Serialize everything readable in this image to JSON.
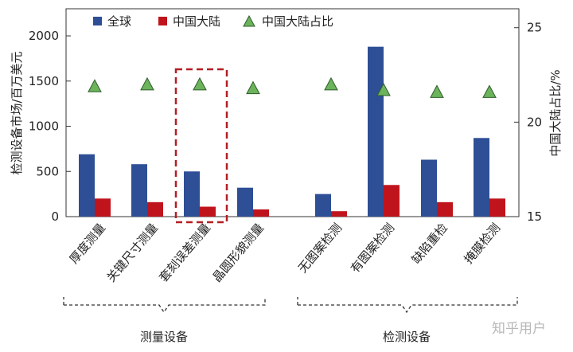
{
  "chart_data": {
    "type": "bar",
    "categories": [
      "厚度测量",
      "关键尺寸测量",
      "套刻误差测量",
      "晶圆形貌测量",
      "无图案检测",
      "有图案检测",
      "缺陷重检",
      "掩膜检测"
    ],
    "series": [
      {
        "name": "全球",
        "axis": "left",
        "values": [
          690,
          580,
          500,
          320,
          250,
          1880,
          630,
          870
        ]
      },
      {
        "name": "中国大陆",
        "axis": "left",
        "values": [
          200,
          160,
          110,
          80,
          60,
          350,
          160,
          200
        ]
      },
      {
        "name": "中国大陆占比",
        "axis": "right",
        "type": "scatter",
        "values": [
          21.9,
          22.0,
          22.0,
          21.8,
          22.0,
          21.7,
          21.6,
          21.6
        ]
      }
    ],
    "ylabel": "检测设备市场/百万美元",
    "ylim": [
      0,
      2300
    ],
    "yticks": [
      "0",
      "500",
      "1000",
      "1500",
      "2000"
    ],
    "y2label": "中国大陆占比/%",
    "y2lim": [
      15,
      26
    ],
    "y2ticks": [
      "15",
      "20",
      "25"
    ],
    "groups": [
      {
        "label": "测量设备",
        "categories": [
          "厚度测量",
          "关键尺寸测量",
          "套刻误差测量",
          "晶圆形貌测量"
        ]
      },
      {
        "label": "检测设备",
        "categories": [
          "无图案检测",
          "有图案检测",
          "缺陷重检",
          "掩膜检测"
        ]
      }
    ],
    "highlight": "套刻误差测量",
    "legend_position": "top-left",
    "colors": {
      "global": "#2e4f96",
      "china": "#c0141c",
      "ratio": "#6cb35c",
      "highlight": "#b21f24"
    }
  },
  "watermark": "知乎用户"
}
